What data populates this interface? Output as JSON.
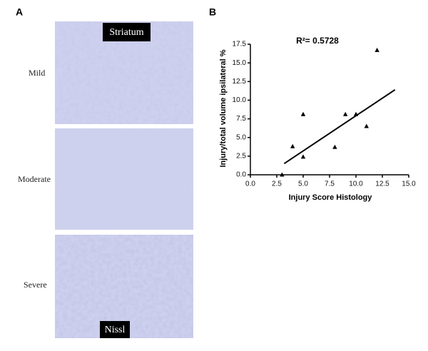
{
  "panel_a": {
    "label": "A",
    "region": "Striatum",
    "stain": "Nissl",
    "rows": [
      "Mild",
      "Moderate",
      "Severe"
    ]
  },
  "chart_data": {
    "type": "scatter",
    "panel_label": "B",
    "annotation": "R²= 0.5728",
    "x_label": "Injury Score Histology",
    "y_label": "Injury/total volume ipsilateral %",
    "x": [
      3,
      4,
      5,
      5,
      8,
      9,
      10,
      11,
      12
    ],
    "values": [
      0,
      3.8,
      2.4,
      8.1,
      3.7,
      8.1,
      8.1,
      6.5,
      16.7
    ],
    "color": "#000000",
    "trendline": {
      "x": [
        3.2,
        13.7
      ],
      "y": [
        1.5,
        11.4
      ]
    },
    "xlim": [
      0,
      15
    ],
    "xticks": [
      {
        "value": 0,
        "label": "0.0"
      },
      2.5,
      {
        "value": 5,
        "label": "5.0"
      },
      7.5,
      {
        "value": 10,
        "label": "10.0"
      },
      12.5,
      {
        "value": 15,
        "label": "15.0"
      }
    ],
    "ylim": [
      0,
      17.5
    ],
    "yticks": [
      {
        "value": 0,
        "label": "0.0"
      },
      2.5,
      {
        "value": 5,
        "label": "5.0"
      },
      7.5,
      {
        "value": 10,
        "label": "10.0"
      },
      12.5,
      {
        "value": 15,
        "label": "15.0"
      },
      17.5
    ]
  }
}
